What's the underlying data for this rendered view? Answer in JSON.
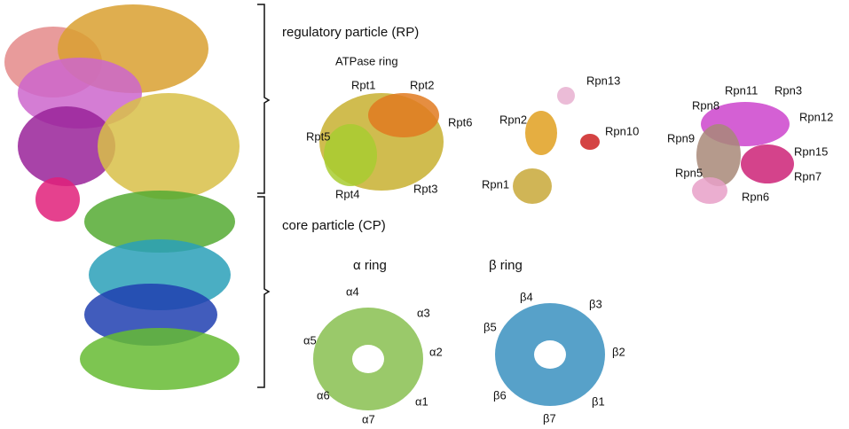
{
  "regulatory_particle": {
    "label": "regulatory particle (RP)",
    "atpase_ring": {
      "title": "ATPase ring",
      "subunits": [
        "Rpt1",
        "Rpt2",
        "Rpt6",
        "Rpt5",
        "Rpt4",
        "Rpt3"
      ]
    },
    "base_subunits": [
      "Rpn13",
      "Rpn2",
      "Rpn10",
      "Rpn1"
    ],
    "lid_subunits": [
      "Rpn11",
      "Rpn3",
      "Rpn8",
      "Rpn12",
      "Rpn9",
      "Rpn15",
      "Rpn5",
      "Rpn7",
      "Rpn6"
    ]
  },
  "core_particle": {
    "label": "core particle (CP)",
    "alpha_ring": {
      "title": "α ring",
      "subunits": [
        "α4",
        "α3",
        "α5",
        "α2",
        "α6",
        "α1",
        "α7"
      ]
    },
    "beta_ring": {
      "title": "β ring",
      "subunits": [
        "β4",
        "β3",
        "β5",
        "β2",
        "β6",
        "β1",
        "β7"
      ]
    }
  }
}
